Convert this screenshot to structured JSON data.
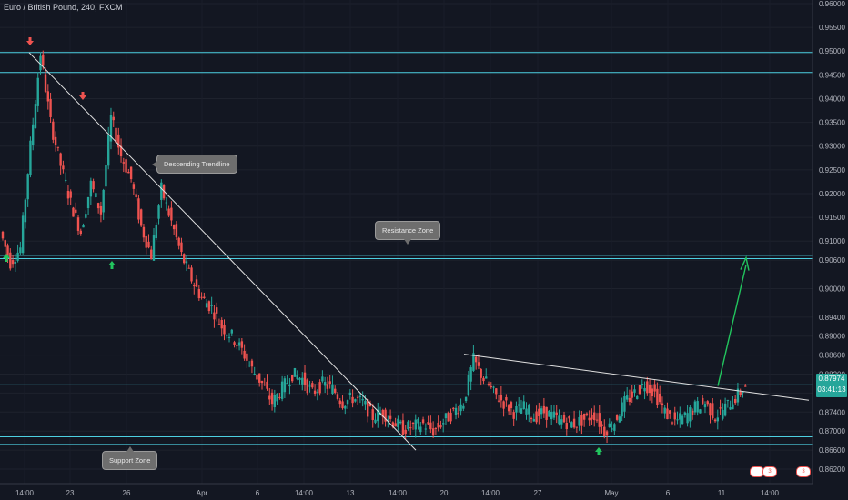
{
  "header": {
    "title": "Euro / British Pound, 240, FXCM"
  },
  "price_tag": {
    "price": "0.87974",
    "countdown": "03:41:13"
  },
  "annotations": {
    "descending": "Descending Trendline",
    "resistance": "Resistance Zone",
    "support": "Support Zone"
  },
  "badge_label": "3",
  "colors": {
    "up": "#26a69a",
    "down": "#ef5350",
    "zone": "#4dd0e1",
    "arrow_up": "#22c55e",
    "arrow_down": "#ef5350",
    "projection": "#22c55e"
  },
  "chart_data": {
    "type": "candlestick",
    "title": "Euro / British Pound, 240, FXCM",
    "y_axis": {
      "range": [
        0.861,
        0.96
      ],
      "ticks": [
        "0.96000",
        "0.95500",
        "0.95000",
        "0.94500",
        "0.94000",
        "0.93500",
        "0.93000",
        "0.92500",
        "0.92000",
        "0.91500",
        "0.91000",
        "0.90600",
        "0.90000",
        "0.89400",
        "0.89000",
        "0.88600",
        "0.88200",
        "0.87800",
        "0.87400",
        "0.87000",
        "0.86600",
        "0.86200"
      ]
    },
    "x_axis": {
      "ticks": [
        "14:00",
        "23",
        "26",
        "Apr",
        "6",
        "14:00",
        "13",
        "14:00",
        "20",
        "14:00",
        "27",
        "May",
        "6",
        "11",
        "14:00"
      ]
    },
    "zones": {
      "resistance": [
        0.9063,
        0.907
      ],
      "support": [
        0.8672,
        0.8688
      ],
      "top": [
        0.9455,
        0.9497
      ]
    },
    "trendlines": {
      "descending": {
        "start": 0.9497,
        "end": 0.866
      },
      "flat_resistance": {
        "start": 0.8862,
        "end": 0.8768
      }
    },
    "last_price": 0.87974,
    "closes": [
      0.912,
      0.9055,
      0.9085,
      0.93,
      0.9495,
      0.935,
      0.926,
      0.918,
      0.912,
      0.922,
      0.916,
      0.936,
      0.928,
      0.923,
      0.913,
      0.907,
      0.921,
      0.914,
      0.907,
      0.902,
      0.898,
      0.896,
      0.892,
      0.89,
      0.887,
      0.883,
      0.88,
      0.876,
      0.879,
      0.882,
      0.881,
      0.878,
      0.88,
      0.879,
      0.876,
      0.877,
      0.876,
      0.873,
      0.874,
      0.872,
      0.8705,
      0.871,
      0.8715,
      0.87,
      0.872,
      0.874,
      0.876,
      0.885,
      0.881,
      0.878,
      0.876,
      0.874,
      0.875,
      0.873,
      0.874,
      0.873,
      0.872,
      0.8715,
      0.8725,
      0.8735,
      0.87,
      0.872,
      0.876,
      0.878,
      0.88,
      0.878,
      0.874,
      0.872,
      0.873,
      0.875,
      0.876,
      0.873,
      0.875,
      0.877,
      0.8795
    ]
  }
}
